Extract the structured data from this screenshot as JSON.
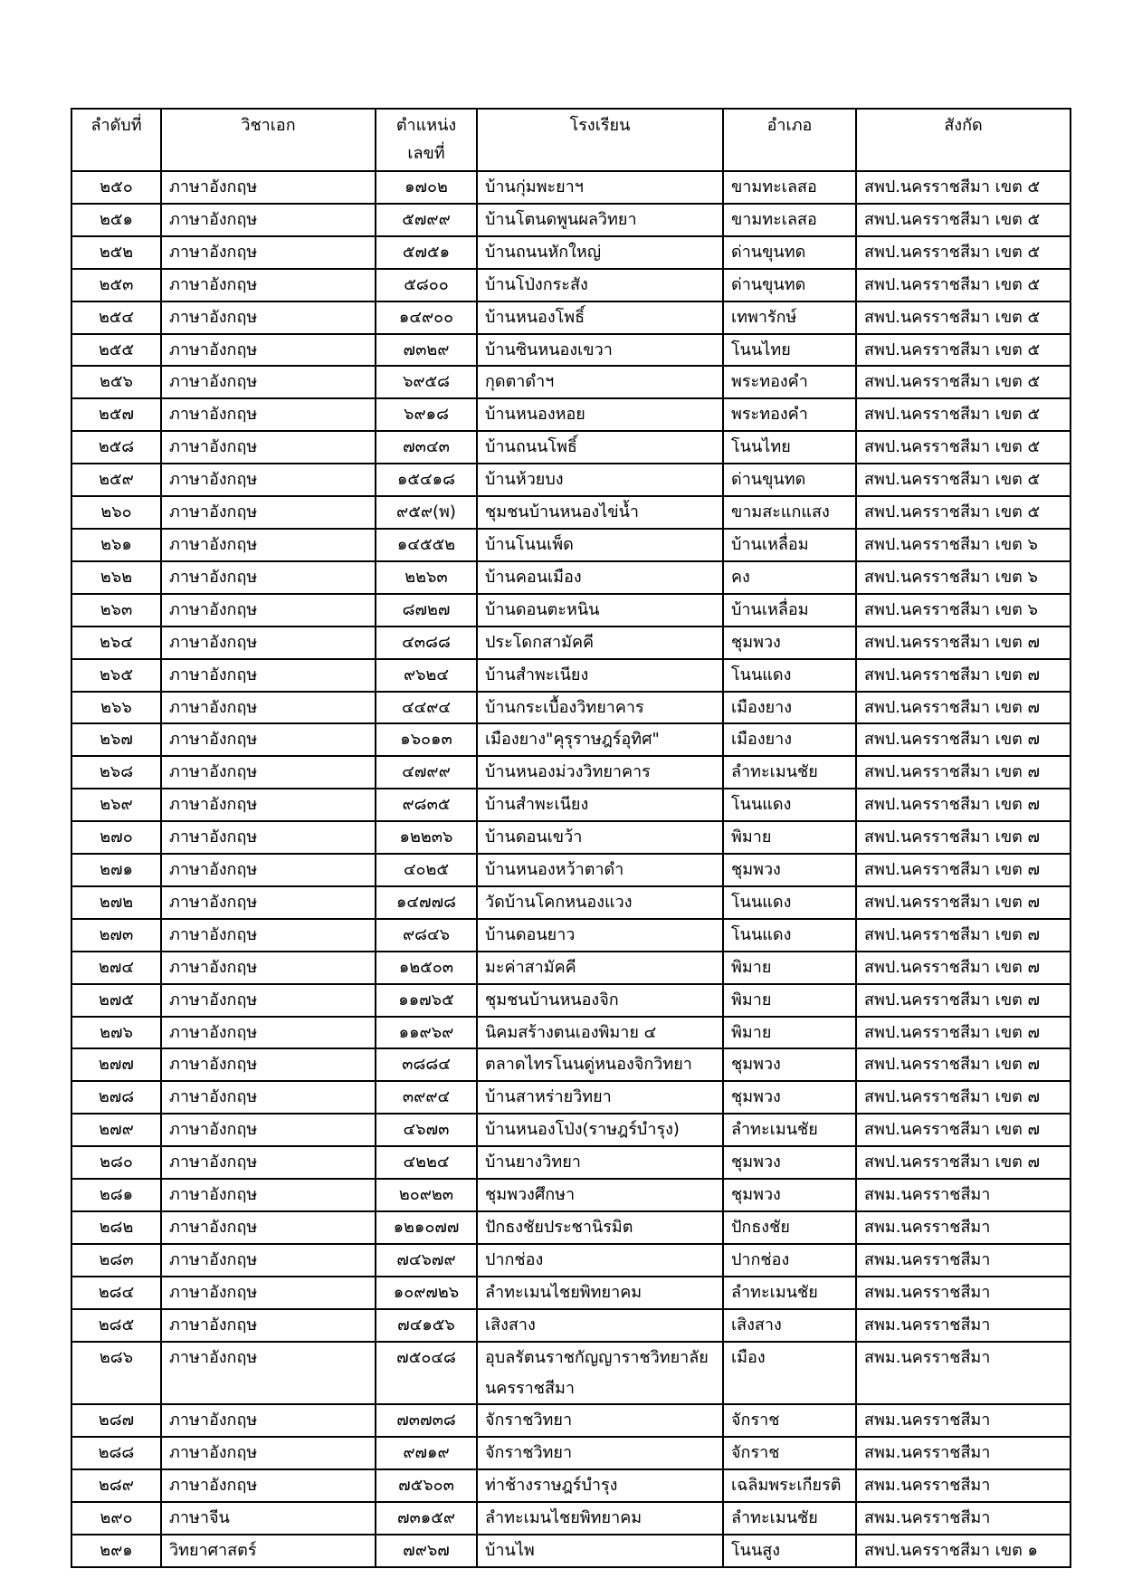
{
  "table": {
    "headers": [
      "ลำดับที่",
      "วิชาเอก",
      "ตำแหน่ง เลขที่",
      "โรงเรียน",
      "อำเภอ",
      "สังกัด"
    ],
    "rows": [
      [
        "๒๕๐",
        "ภาษาอังกฤษ",
        "๑๗๐๒",
        "บ้านกุ่มพะยาฯ",
        "ขามทะเลสอ",
        "สพป.นครราชสีมา เขต ๕"
      ],
      [
        "๒๕๑",
        "ภาษาอังกฤษ",
        "๕๗๙๙",
        "บ้านโตนดพูนผลวิทยา",
        "ขามทะเลสอ",
        "สพป.นครราชสีมา เขต ๕"
      ],
      [
        "๒๕๒",
        "ภาษาอังกฤษ",
        "๕๗๕๑",
        "บ้านถนนหักใหญ่",
        "ด่านขุนทด",
        "สพป.นครราชสีมา เขต ๕"
      ],
      [
        "๒๕๓",
        "ภาษาอังกฤษ",
        "๕๘๐๐",
        "บ้านโป่งกระสัง",
        "ด่านขุนทด",
        "สพป.นครราชสีมา เขต ๕"
      ],
      [
        "๒๕๔",
        "ภาษาอังกฤษ",
        "๑๔๙๐๐",
        "บ้านหนองโพธิ์",
        "เทพารักษ์",
        "สพป.นครราชสีมา เขต ๕"
      ],
      [
        "๒๕๕",
        "ภาษาอังกฤษ",
        "๗๓๒๙",
        "บ้านซินหนองเขวา",
        "โนนไทย",
        "สพป.นครราชสีมา เขต ๕"
      ],
      [
        "๒๕๖",
        "ภาษาอังกฤษ",
        "๖๙๕๘",
        "กุดตาดำฯ",
        "พระทองคำ",
        "สพป.นครราชสีมา เขต ๕"
      ],
      [
        "๒๕๗",
        "ภาษาอังกฤษ",
        "๖๙๑๘",
        "บ้านหนองหอย",
        "พระทองคำ",
        "สพป.นครราชสีมา เขต ๕"
      ],
      [
        "๒๕๘",
        "ภาษาอังกฤษ",
        "๗๓๔๓",
        "บ้านถนนโพธิ์",
        "โนนไทย",
        "สพป.นครราชสีมา เขต ๕"
      ],
      [
        "๒๕๙",
        "ภาษาอังกฤษ",
        "๑๕๔๑๘",
        "บ้านห้วยบง",
        "ด่านขุนทด",
        "สพป.นครราชสีมา เขต ๕"
      ],
      [
        "๒๖๐",
        "ภาษาอังกฤษ",
        "๙๕๙(พ)",
        "ชุมชนบ้านหนองไข่น้ำ",
        "ขามสะแกแสง",
        "สพป.นครราชสีมา เขต ๕"
      ],
      [
        "๒๖๑",
        "ภาษาอังกฤษ",
        "๑๔๕๕๒",
        "บ้านโนนเพ็ด",
        "บ้านเหลื่อม",
        "สพป.นครราชสีมา เขต ๖"
      ],
      [
        "๒๖๒",
        "ภาษาอังกฤษ",
        "๒๒๖๓",
        "บ้านคอนเมือง",
        "คง",
        "สพป.นครราชสีมา เขต ๖"
      ],
      [
        "๒๖๓",
        "ภาษาอังกฤษ",
        "๘๗๒๗",
        "บ้านดอนตะหนิน",
        "บ้านเหลื่อม",
        "สพป.นครราชสีมา เขต ๖"
      ],
      [
        "๒๖๔",
        "ภาษาอังกฤษ",
        "๔๓๘๘",
        "ประโดกสามัคคี",
        "ชุมพวง",
        "สพป.นครราชสีมา เขต ๗"
      ],
      [
        "๒๖๕",
        "ภาษาอังกฤษ",
        "๙๖๒๔",
        "บ้านสำพะเนียง",
        "โนนแดง",
        "สพป.นครราชสีมา เขต ๗"
      ],
      [
        "๒๖๖",
        "ภาษาอังกฤษ",
        "๔๔๙๔",
        "บ้านกระเบื้องวิทยาคาร",
        "เมืองยาง",
        "สพป.นครราชสีมา เขต ๗"
      ],
      [
        "๒๖๗",
        "ภาษาอังกฤษ",
        "๑๖๐๑๓",
        "เมืองยาง\"คุรุราษฎร์อุทิศ\"",
        "เมืองยาง",
        "สพป.นครราชสีมา เขต ๗"
      ],
      [
        "๒๖๘",
        "ภาษาอังกฤษ",
        "๔๗๙๙",
        "บ้านหนองม่วงวิทยาคาร",
        "ลำทะเมนชัย",
        "สพป.นครราชสีมา เขต ๗"
      ],
      [
        "๒๖๙",
        "ภาษาอังกฤษ",
        "๙๘๓๕",
        "บ้านสำพะเนียง",
        "โนนแดง",
        "สพป.นครราชสีมา เขต ๗"
      ],
      [
        "๒๗๐",
        "ภาษาอังกฤษ",
        "๑๒๒๓๖",
        "บ้านดอนเขว้า",
        "พิมาย",
        "สพป.นครราชสีมา เขต ๗"
      ],
      [
        "๒๗๑",
        "ภาษาอังกฤษ",
        "๔๐๒๕",
        "บ้านหนองหว้าตาดำ",
        "ชุมพวง",
        "สพป.นครราชสีมา เขต ๗"
      ],
      [
        "๒๗๒",
        "ภาษาอังกฤษ",
        "๑๔๗๗๘",
        "วัดบ้านโคกหนองแวง",
        "โนนแดง",
        "สพป.นครราชสีมา เขต ๗"
      ],
      [
        "๒๗๓",
        "ภาษาอังกฤษ",
        "๙๘๔๖",
        "บ้านดอนยาว",
        "โนนแดง",
        "สพป.นครราชสีมา เขต ๗"
      ],
      [
        "๒๗๔",
        "ภาษาอังกฤษ",
        "๑๒๕๐๓",
        "มะค่าสามัคคี",
        "พิมาย",
        "สพป.นครราชสีมา เขต ๗"
      ],
      [
        "๒๗๕",
        "ภาษาอังกฤษ",
        "๑๑๗๖๕",
        "ชุมชนบ้านหนองจิก",
        "พิมาย",
        "สพป.นครราชสีมา เขต ๗"
      ],
      [
        "๒๗๖",
        "ภาษาอังกฤษ",
        "๑๑๙๖๙",
        "นิคมสร้างตนเองพิมาย ๔",
        "พิมาย",
        "สพป.นครราชสีมา เขต ๗"
      ],
      [
        "๒๗๗",
        "ภาษาอังกฤษ",
        "๓๘๘๔",
        "ตลาดไทรโนนดู่หนองจิกวิทยา",
        "ชุมพวง",
        "สพป.นครราชสีมา เขต ๗"
      ],
      [
        "๒๗๘",
        "ภาษาอังกฤษ",
        "๓๙๙๔",
        "บ้านสาหร่ายวิทยา",
        "ชุมพวง",
        "สพป.นครราชสีมา เขต ๗"
      ],
      [
        "๒๗๙",
        "ภาษาอังกฤษ",
        "๔๖๗๓",
        "บ้านหนองโป่ง(ราษฎร์บำรุง)",
        "ลำทะเมนชัย",
        "สพป.นครราชสีมา เขต ๗"
      ],
      [
        "๒๘๐",
        "ภาษาอังกฤษ",
        "๔๒๒๔",
        "บ้านยางวิทยา",
        "ชุมพวง",
        "สพป.นครราชสีมา เขต ๗"
      ],
      [
        "๒๘๑",
        "ภาษาอังกฤษ",
        "๒๐๙๒๓",
        "ชุมพวงศึกษา",
        "ชุมพวง",
        "สพม.นครราชสีมา"
      ],
      [
        "๒๘๒",
        "ภาษาอังกฤษ",
        "๑๒๑๐๗๗",
        "ปักธงชัยประชานิรมิต",
        "ปักธงชัย",
        "สพม.นครราชสีมา"
      ],
      [
        "๒๘๓",
        "ภาษาอังกฤษ",
        "๗๔๖๗๙",
        "ปากช่อง",
        "ปากช่อง",
        "สพม.นครราชสีมา"
      ],
      [
        "๒๘๔",
        "ภาษาอังกฤษ",
        "๑๐๙๗๒๖",
        "ลำทะเมนไชยพิทยาคม",
        "ลำทะเมนชัย",
        "สพม.นครราชสีมา"
      ],
      [
        "๒๘๕",
        "ภาษาอังกฤษ",
        "๗๔๑๕๖",
        "เสิงสาง",
        "เสิงสาง",
        "สพม.นครราชสีมา"
      ],
      [
        "๒๘๖",
        "ภาษาอังกฤษ",
        "๗๕๐๔๘",
        "อุบลรัตนราชกัญญาราชวิทยาลัย นครราชสีมา",
        "เมือง",
        "สพม.นครราชสีมา"
      ],
      [
        "๒๘๗",
        "ภาษาอังกฤษ",
        "๗๓๗๓๘",
        "จักราชวิทยา",
        "จักราช",
        "สพม.นครราชสีมา"
      ],
      [
        "๒๘๘",
        "ภาษาอังกฤษ",
        "๙๗๑๙",
        "จักราชวิทยา",
        "จักราช",
        "สพม.นครราชสีมา"
      ],
      [
        "๒๘๙",
        "ภาษาอังกฤษ",
        "๗๕๖๐๓",
        "ท่าช้างราษฎร์บำรุง",
        "เฉลิมพระเกียรติ",
        "สพม.นครราชสีมา"
      ],
      [
        "๒๙๐",
        "ภาษาจีน",
        "๗๓๑๕๙",
        "ลำทะเมนไชยพิทยาคม",
        "ลำทะเมนชัย",
        "สพม.นครราชสีมา"
      ],
      [
        "๒๙๑",
        "วิทยาศาสตร์",
        "๗๙๖๗",
        "บ้านไพ",
        "โนนสูง",
        "สพป.นครราชสีมา เขต ๑"
      ]
    ]
  }
}
